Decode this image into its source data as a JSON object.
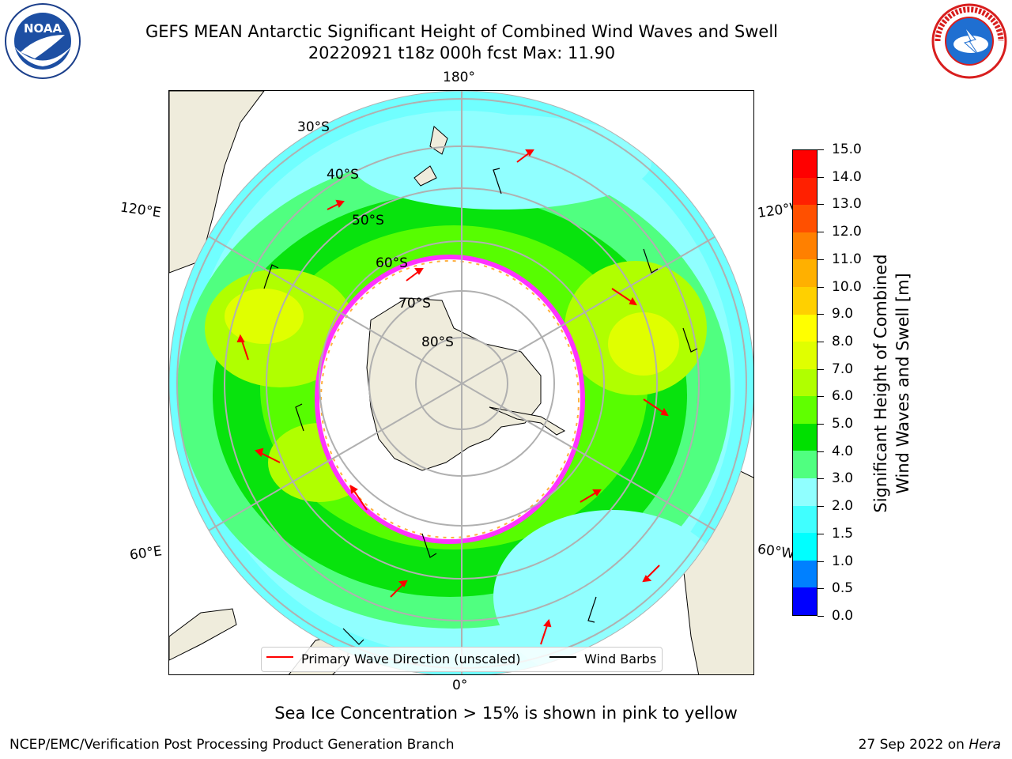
{
  "header": {
    "title_line1": "GEFS MEAN Antarctic Significant Height of Combined Wind Waves and Swell",
    "title_line2": "20220921 t18z 000h fcst   Max: 11.90"
  },
  "logos": {
    "left": {
      "icon": "noaa-logo",
      "text": "NOAA"
    },
    "right": {
      "icon": "nws-logo"
    }
  },
  "map": {
    "projection": "south-polar-stereographic",
    "longitude_labels": {
      "top": "180°",
      "left": "120°E",
      "right": "120°W",
      "bottom_left": "60°E",
      "bottom_right": "60°W",
      "bottom": "0°"
    },
    "latitude_labels": [
      "30°S",
      "40°S",
      "50°S",
      "60°S",
      "70°S",
      "80°S"
    ],
    "colors": {
      "land": "#efecdc",
      "ice_edge": "#ff33ff",
      "wave_arrow": "#ff0000",
      "wind_barb": "#000000",
      "gridline": "#b0b0b0"
    }
  },
  "legend": {
    "items": [
      {
        "label": "Primary Wave Direction (unscaled)",
        "color": "#ff0000"
      },
      {
        "label": "Wind Barbs",
        "color": "#000000"
      }
    ]
  },
  "colorbar": {
    "title_line1": "Significant Height of Combined",
    "title_line2": "Wind Waves and Swell [m]",
    "ticks": [
      "0.0",
      "0.5",
      "1.0",
      "1.5",
      "2.0",
      "3.0",
      "4.0",
      "5.0",
      "6.0",
      "7.0",
      "8.0",
      "9.0",
      "10.0",
      "11.0",
      "12.0",
      "13.0",
      "14.0",
      "15.0"
    ],
    "colors": [
      "#0000ff",
      "#0080ff",
      "#00ffff",
      "#40ffff",
      "#90ffff",
      "#50ff80",
      "#00e000",
      "#60ff00",
      "#b0ff00",
      "#e0ff00",
      "#ffff00",
      "#ffd000",
      "#ffb000",
      "#ff8000",
      "#ff5000",
      "#ff2000",
      "#ff0000"
    ]
  },
  "caption": "Sea Ice Concentration > 15% is shown in pink to yellow",
  "footer": {
    "left": "NCEP/EMC/Verification Post Processing Product Generation Branch",
    "right_prefix": "27 Sep 2022 on ",
    "right_machine": "Hera"
  }
}
